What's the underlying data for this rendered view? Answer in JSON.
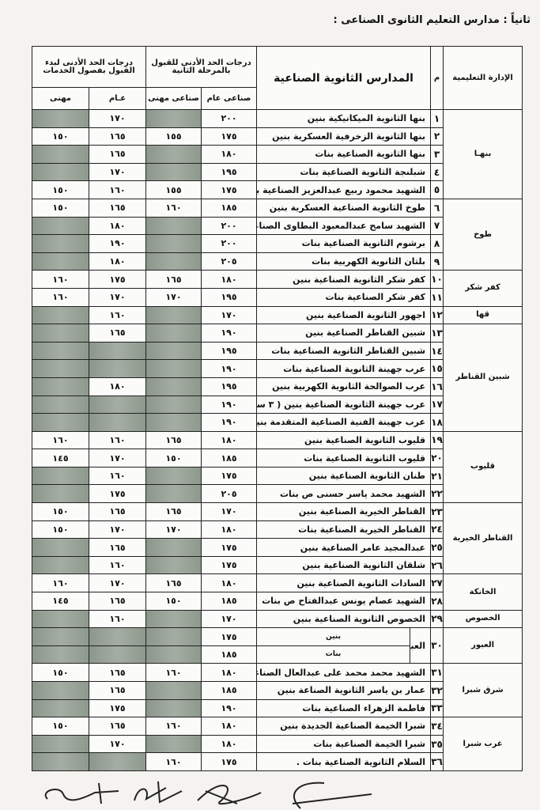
{
  "title": "ثانياً : مدارس التعليم الثانوى الصناعى :",
  "headers": {
    "district": "الإدارة التعليمية",
    "index": "م",
    "school": "المدارس الثانوية الصناعية",
    "phase2": "درجات الحد الأدنى للقبول بالمرحلة الثانية",
    "services": "درجات الحد الأدنى لبدء القبول بفصول الخدمات",
    "ind_general": "صناعى عام",
    "ind_prof": "صناعى مهنى",
    "general": "عـام",
    "prof": "مهنى"
  },
  "colors": {
    "masked_cell": "#949e93"
  },
  "rows": [
    {
      "district": "بنهـا",
      "span": 5,
      "n": "١",
      "school": "بنها الثانوية الميكانيكية بنين",
      "v": [
        "٢٠٠",
        null,
        "١٧٠",
        null
      ]
    },
    {
      "n": "٢",
      "school": "بنها الثانوية الزخرفية العسكرية بنين",
      "v": [
        "١٧٥",
        "١٥٥",
        "١٦٥",
        "١٥٠"
      ]
    },
    {
      "n": "٣",
      "school": "بنها الثانوية الصناعية بنات",
      "v": [
        "١٨٠",
        null,
        "١٦٥",
        null
      ]
    },
    {
      "n": "٤",
      "school": "شبلنجة الثانوية الصناعية بنات",
      "v": [
        "١٩٥",
        null,
        "١٧٠",
        null
      ]
    },
    {
      "n": "٥",
      "school": "الشهيد محمود ربيع عبدالعزيز الصناعية بنات",
      "v": [
        "١٧٥",
        "١٥٥",
        "١٦٠",
        "١٥٠"
      ]
    },
    {
      "district": "طوخ",
      "span": 4,
      "n": "٦",
      "school": "طوخ الثانوية الصناعية العسكرية بنين",
      "v": [
        "١٨٥",
        "١٦٠",
        "١٦٥",
        "١٥٠"
      ]
    },
    {
      "n": "٧",
      "school": "الشهيد سامح عبدالمعبود البطاوى الصناعية بنات",
      "v": [
        "٢٠٠",
        null,
        "١٨٠",
        null
      ]
    },
    {
      "n": "٨",
      "school": "برشوم الثانوية الصناعية بنات",
      "v": [
        "٢٠٠",
        null,
        "١٩٠",
        null
      ]
    },
    {
      "n": "٩",
      "school": "بلتان الثانوية الكهربية بنات",
      "v": [
        "٢٠٥",
        null,
        "١٨٠",
        null
      ]
    },
    {
      "district": "كفر شكر",
      "span": 2,
      "n": "١٠",
      "school": "كفر شكر الثانوية الصناعية بنين",
      "v": [
        "١٨٠",
        "١٦٥",
        "١٧٥",
        "١٦٠"
      ]
    },
    {
      "n": "١١",
      "school": "كفر شكر الصناعية بنات",
      "v": [
        "١٩٥",
        "١٧٠",
        "١٧٠",
        "١٦٠"
      ]
    },
    {
      "district": "قها",
      "span": 1,
      "n": "١٢",
      "school": "اجهور الثانوية الصناعية بنين",
      "v": [
        "١٧٠",
        null,
        "١٦٠",
        null
      ]
    },
    {
      "district": "شبين القناطر",
      "span": 6,
      "n": "١٣",
      "school": "شبين القناطر الصناعية بنين",
      "v": [
        "١٩٠",
        null,
        "١٦٥",
        null
      ]
    },
    {
      "n": "١٤",
      "school": "شبين القناطر الثانوية الصناعية بنات",
      "v": [
        "١٩٥",
        null,
        null,
        null
      ]
    },
    {
      "n": "١٥",
      "school": "عرب جهينة الثانوية الصناعية بنات",
      "v": [
        "١٩٠",
        null,
        null,
        null
      ]
    },
    {
      "n": "١٦",
      "school": "عرب الصوالحة الثانوية الكهربية بنين",
      "v": [
        "١٩٥",
        null,
        "١٨٠",
        null
      ]
    },
    {
      "n": "١٧",
      "school": "عرب جهينة الثانوية الصناعية بنين ( ٣ سنوات )",
      "v": [
        "١٩٠",
        null,
        null,
        null
      ]
    },
    {
      "n": "١٨",
      "school": "عرب جهينة الفنية الصناعية المتقدمة بنين",
      "v": [
        "١٩٠",
        null,
        null,
        null
      ]
    },
    {
      "district": "قليوب",
      "span": 4,
      "n": "١٩",
      "school": "قليوب الثانوية الصناعية بنين",
      "v": [
        "١٨٠",
        "١٦٥",
        "١٦٠",
        "١٦٠"
      ]
    },
    {
      "n": "٢٠",
      "school": "قليوب الثانوية الصناعية بنات",
      "v": [
        "١٨٥",
        "١٥٠",
        "١٧٠",
        "١٤٥"
      ]
    },
    {
      "n": "٢١",
      "school": "طنان الثانوية الصناعية بنين",
      "v": [
        "١٧٥",
        null,
        "١٦٠",
        null
      ]
    },
    {
      "n": "٢٢",
      "school": "الشهيد محمد ياسر حسنى ص بنات",
      "v": [
        "٢٠٥",
        null,
        "١٧٥",
        null
      ]
    },
    {
      "district": "القناطر الخيرية",
      "span": 4,
      "n": "٢٣",
      "school": "القناطر الخيرية الصناعية بنين",
      "v": [
        "١٧٠",
        "١٦٥",
        "١٦٥",
        "١٥٠"
      ]
    },
    {
      "n": "٢٤",
      "school": "القناطر الخيرية الصناعية بنات",
      "v": [
        "١٨٠",
        "١٧٠",
        "١٧٠",
        "١٥٠"
      ]
    },
    {
      "n": "٢٥",
      "school": "عبدالمجيد عامر الصناعية بنين",
      "v": [
        "١٧٥",
        null,
        "١٦٥",
        null
      ]
    },
    {
      "n": "٢٦",
      "school": "شلقان الثانوية الصناعية بنين",
      "v": [
        "١٧٥",
        null,
        "١٦٠",
        null
      ]
    },
    {
      "district": "الخانكة",
      "span": 2,
      "n": "٢٧",
      "school": "السادات الثانوية الصناعية بنين",
      "v": [
        "١٨٠",
        "١٦٥",
        "١٧٠",
        "١٦٠"
      ]
    },
    {
      "n": "٢٨",
      "school": "الشهيد عصام يونس عبدالفتاح ص بنات",
      "v": [
        "١٨٥",
        "١٥٠",
        "١٦٥",
        "١٤٥"
      ]
    },
    {
      "district": "الخصوص",
      "span": 1,
      "n": "٢٩",
      "school": "الخصوص الثانوية الصناعية بنين",
      "v": [
        "١٧٠",
        null,
        "١٦٠",
        null
      ]
    },
    {
      "district": "العبور",
      "span": 2,
      "n": "٣٠",
      "school": "العبور الثانوية الصناعية المشتركة",
      "sub": "بنين",
      "v": [
        "١٧٥",
        null,
        null,
        null
      ]
    },
    {
      "cont": true,
      "sub": "بنات",
      "v": [
        "١٨٥",
        null,
        null,
        null
      ]
    },
    {
      "district": "شرق شبرا",
      "span": 3,
      "n": "٣١",
      "school": "الشهيد محمد محمد على عبدالعال الصناعية بنين",
      "v": [
        "١٨٠",
        "١٦٠",
        "١٦٥",
        "١٥٠"
      ]
    },
    {
      "n": "٣٢",
      "school": "عمار بن ياسر الثانوية الصناعة بنين",
      "v": [
        "١٨٥",
        null,
        "١٦٥",
        null
      ]
    },
    {
      "n": "٣٣",
      "school": "فاطمة الزهراء الصناعية بنات",
      "v": [
        "١٩٠",
        null,
        "١٧٥",
        null
      ]
    },
    {
      "district": "غرب شبرا",
      "span": 3,
      "n": "٣٤",
      "school": "شبرا الخيمة الصناعية الجديدة بنين",
      "v": [
        "١٨٠",
        "١٦٠",
        "١٦٥",
        "١٥٠"
      ]
    },
    {
      "n": "٣٥",
      "school": "شبرا الخيمة الصناعية بنات",
      "v": [
        "١٨٠",
        null,
        "١٧٠",
        null
      ]
    },
    {
      "n": "٣٦",
      "school": "السلام الثانوية الصناعية بنات .",
      "v": [
        "١٧٥",
        "١٦٠",
        null,
        null
      ]
    }
  ]
}
